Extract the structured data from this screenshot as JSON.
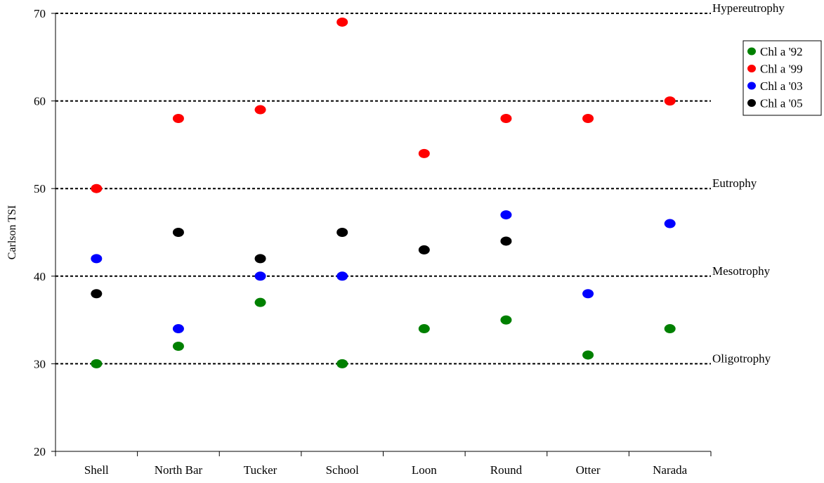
{
  "chart_data": {
    "type": "scatter",
    "title": "",
    "xlabel": "",
    "ylabel": "Carlson TSI",
    "categories": [
      "Shell",
      "North Bar",
      "Tucker",
      "School",
      "Loon",
      "Round",
      "Otter",
      "Narada"
    ],
    "ylim": [
      20,
      70
    ],
    "yticks": [
      20,
      30,
      40,
      50,
      60,
      70
    ],
    "grid": false,
    "legend_position": "top-right",
    "series": [
      {
        "name": "Chl a '92",
        "color": "#008000",
        "values": [
          30,
          32,
          37,
          30,
          34,
          35,
          31,
          34
        ]
      },
      {
        "name": "Chl a '99",
        "color": "#ff0000",
        "values": [
          50,
          58,
          59,
          69,
          54,
          58,
          58,
          60
        ]
      },
      {
        "name": "Chl a '03",
        "color": "#0000ff",
        "values": [
          42,
          34,
          40,
          40,
          null,
          47,
          38,
          46
        ]
      },
      {
        "name": "Chl a '05",
        "color": "#000000",
        "values": [
          38,
          45,
          42,
          45,
          43,
          44,
          null,
          null
        ]
      }
    ],
    "reference_lines": [
      {
        "y": 70,
        "label": "Hypereutrophy"
      },
      {
        "y": 60,
        "label": ""
      },
      {
        "y": 50,
        "label": "Eutrophy"
      },
      {
        "y": 40,
        "label": "Mesotrophy"
      },
      {
        "y": 30,
        "label": "Oligotrophy"
      }
    ]
  }
}
